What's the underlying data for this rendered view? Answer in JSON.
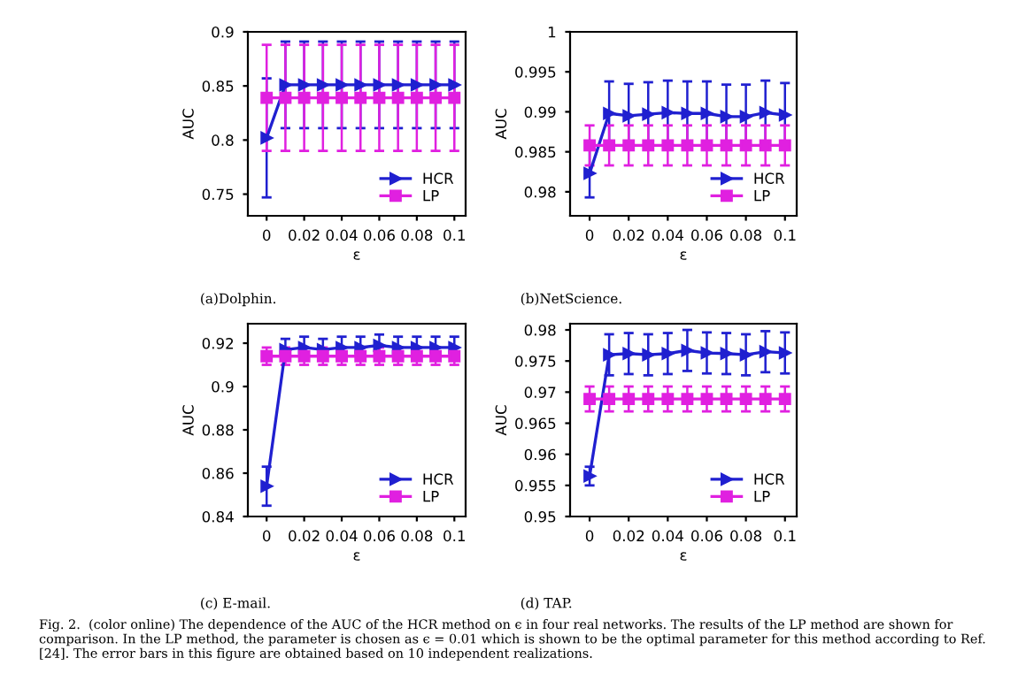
{
  "chart_data": [
    {
      "type": "line",
      "xlabel": "ε",
      "ylabel": "AUC",
      "x": [
        0,
        0.01,
        0.02,
        0.03,
        0.04,
        0.05,
        0.06,
        0.07,
        0.08,
        0.09,
        0.1
      ],
      "xlim": [
        -0.01,
        0.106
      ],
      "xticks": [
        0,
        0.02,
        0.04,
        0.06,
        0.08,
        0.1
      ],
      "ylim": [
        0.73,
        0.9
      ],
      "yticks": [
        0.75,
        0.8,
        0.85,
        0.9
      ],
      "legend": "bottom right",
      "grid": false,
      "series": [
        {
          "name": "HCR",
          "color": "#2020d0",
          "marker": "triangle",
          "values": [
            0.802,
            0.851,
            0.851,
            0.851,
            0.851,
            0.851,
            0.851,
            0.851,
            0.851,
            0.851,
            0.851
          ],
          "errors": [
            0.055,
            0.04,
            0.04,
            0.04,
            0.04,
            0.04,
            0.04,
            0.04,
            0.04,
            0.04,
            0.04
          ]
        },
        {
          "name": "LP",
          "color": "#e020e0",
          "marker": "square",
          "values": [
            0.839,
            0.839,
            0.839,
            0.839,
            0.839,
            0.839,
            0.839,
            0.839,
            0.839,
            0.839,
            0.839
          ],
          "errors": [
            0.049,
            0.049,
            0.049,
            0.049,
            0.049,
            0.049,
            0.049,
            0.049,
            0.049,
            0.049,
            0.049
          ]
        }
      ],
      "annotations": [
        "(a)Dolphin."
      ]
    },
    {
      "type": "line",
      "xlabel": "ε",
      "ylabel": "AUC",
      "x": [
        0,
        0.01,
        0.02,
        0.03,
        0.04,
        0.05,
        0.06,
        0.07,
        0.08,
        0.09,
        0.1
      ],
      "xlim": [
        -0.01,
        0.106
      ],
      "xticks": [
        0,
        0.02,
        0.04,
        0.06,
        0.08,
        0.1
      ],
      "ylim": [
        0.977,
        1
      ],
      "yticks": [
        0.98,
        0.985,
        0.99,
        0.995,
        1
      ],
      "legend": "bottom right",
      "grid": false,
      "series": [
        {
          "name": "HCR",
          "color": "#2020d0",
          "marker": "triangle",
          "values": [
            0.9823,
            0.9898,
            0.9895,
            0.9897,
            0.9899,
            0.9898,
            0.9898,
            0.9894,
            0.9894,
            0.9899,
            0.9896
          ],
          "errors": [
            0.003,
            0.004,
            0.004,
            0.004,
            0.004,
            0.004,
            0.004,
            0.004,
            0.004,
            0.004,
            0.004
          ]
        },
        {
          "name": "LP",
          "color": "#e020e0",
          "marker": "square",
          "values": [
            0.9858,
            0.9858,
            0.9858,
            0.9858,
            0.9858,
            0.9858,
            0.9858,
            0.9858,
            0.9858,
            0.9858,
            0.9858
          ],
          "errors": [
            0.0025,
            0.0025,
            0.0025,
            0.0025,
            0.0025,
            0.0025,
            0.0025,
            0.0025,
            0.0025,
            0.0025,
            0.0025
          ]
        }
      ],
      "annotations": [
        "(b)NetScience."
      ]
    },
    {
      "type": "line",
      "xlabel": "ε",
      "ylabel": "AUC",
      "x": [
        0,
        0.01,
        0.02,
        0.03,
        0.04,
        0.05,
        0.06,
        0.07,
        0.08,
        0.09,
        0.1
      ],
      "xlim": [
        -0.01,
        0.106
      ],
      "xticks": [
        0,
        0.02,
        0.04,
        0.06,
        0.08,
        0.1
      ],
      "ylim": [
        0.84,
        0.929
      ],
      "yticks": [
        0.84,
        0.86,
        0.88,
        0.9,
        0.92
      ],
      "legend": "bottom right",
      "grid": false,
      "series": [
        {
          "name": "HCR",
          "color": "#2020d0",
          "marker": "triangle",
          "values": [
            0.854,
            0.917,
            0.918,
            0.917,
            0.918,
            0.918,
            0.919,
            0.918,
            0.918,
            0.918,
            0.918
          ],
          "errors": [
            0.009,
            0.005,
            0.005,
            0.005,
            0.005,
            0.005,
            0.005,
            0.005,
            0.005,
            0.005,
            0.005
          ]
        },
        {
          "name": "LP",
          "color": "#e020e0",
          "marker": "square",
          "values": [
            0.914,
            0.914,
            0.914,
            0.914,
            0.914,
            0.914,
            0.914,
            0.914,
            0.914,
            0.914,
            0.914
          ],
          "errors": [
            0.004,
            0.004,
            0.004,
            0.004,
            0.004,
            0.004,
            0.004,
            0.004,
            0.004,
            0.004,
            0.004
          ]
        }
      ],
      "annotations": [
        "(c) E-mail."
      ]
    },
    {
      "type": "line",
      "xlabel": "ε",
      "ylabel": "AUC",
      "x": [
        0,
        0.01,
        0.02,
        0.03,
        0.04,
        0.05,
        0.06,
        0.07,
        0.08,
        0.09,
        0.1
      ],
      "xlim": [
        -0.01,
        0.106
      ],
      "xticks": [
        0,
        0.02,
        0.04,
        0.06,
        0.08,
        0.1
      ],
      "ylim": [
        0.95,
        0.981
      ],
      "yticks": [
        0.95,
        0.955,
        0.96,
        0.965,
        0.97,
        0.975,
        0.98
      ],
      "legend": "bottom right",
      "grid": false,
      "series": [
        {
          "name": "HCR",
          "color": "#2020d0",
          "marker": "triangle",
          "values": [
            0.9565,
            0.976,
            0.9762,
            0.976,
            0.9762,
            0.9767,
            0.9763,
            0.9762,
            0.976,
            0.9765,
            0.9763
          ],
          "errors": [
            0.0015,
            0.0033,
            0.0033,
            0.0033,
            0.0033,
            0.0033,
            0.0033,
            0.0033,
            0.0033,
            0.0033,
            0.0033
          ]
        },
        {
          "name": "LP",
          "color": "#e020e0",
          "marker": "square",
          "values": [
            0.9689,
            0.9689,
            0.9689,
            0.9689,
            0.9689,
            0.9689,
            0.9689,
            0.9689,
            0.9689,
            0.9689,
            0.9689
          ],
          "errors": [
            0.002,
            0.002,
            0.002,
            0.002,
            0.002,
            0.002,
            0.002,
            0.002,
            0.002,
            0.002,
            0.002
          ]
        }
      ],
      "annotations": [
        "(d) TAP.",
        "Fig. 2.  (color online) The dependence of the AUC of the HCR method on ϵ in four real networks. The results of the LP method are shown for comparison. In the LP method, the parameter is chosen as ϵ = 0.01 which is shown to be the optimal parameter for this method according to Ref. [24]. The error bars in this figure are obtained based on 10 independent realizations."
      ]
    }
  ]
}
